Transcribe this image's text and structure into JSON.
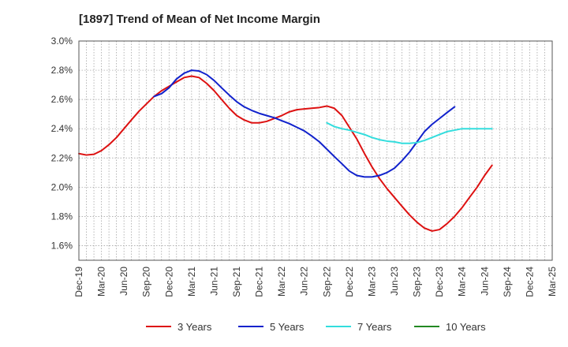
{
  "chart_data": {
    "type": "line",
    "title": "[1897]  Trend of Mean of Net Income Margin",
    "xlabel": "",
    "ylabel": "",
    "ylim": [
      1.5,
      3.0
    ],
    "yticks": [
      1.6,
      1.8,
      2.0,
      2.2,
      2.4,
      2.6,
      2.8,
      3.0
    ],
    "ytick_labels": [
      "1.6%",
      "1.8%",
      "2.0%",
      "2.2%",
      "2.4%",
      "2.6%",
      "2.8%",
      "3.0%"
    ],
    "x_labels": [
      "Dec-19",
      "Mar-20",
      "Jun-20",
      "Sep-20",
      "Dec-20",
      "Mar-21",
      "Jun-21",
      "Sep-21",
      "Dec-21",
      "Mar-22",
      "Jun-22",
      "Sep-22",
      "Dec-22",
      "Mar-23",
      "Jun-23",
      "Sep-23",
      "Dec-23",
      "Mar-24",
      "Jun-24",
      "Sep-24",
      "Dec-24",
      "Mar-25"
    ],
    "grid": true,
    "legend_position": "bottom",
    "series": [
      {
        "name": "3 Years",
        "color": "#dd1111",
        "points": [
          [
            0,
            2.23
          ],
          [
            0.33,
            2.22
          ],
          [
            0.67,
            2.225
          ],
          [
            1,
            2.25
          ],
          [
            1.33,
            2.29
          ],
          [
            1.67,
            2.34
          ],
          [
            2,
            2.4
          ],
          [
            2.33,
            2.46
          ],
          [
            2.67,
            2.52
          ],
          [
            3,
            2.57
          ],
          [
            3.33,
            2.62
          ],
          [
            3.67,
            2.66
          ],
          [
            4,
            2.69
          ],
          [
            4.33,
            2.72
          ],
          [
            4.67,
            2.75
          ],
          [
            5,
            2.76
          ],
          [
            5.33,
            2.75
          ],
          [
            5.67,
            2.71
          ],
          [
            6,
            2.66
          ],
          [
            6.33,
            2.6
          ],
          [
            6.67,
            2.54
          ],
          [
            7,
            2.49
          ],
          [
            7.33,
            2.46
          ],
          [
            7.67,
            2.44
          ],
          [
            8,
            2.44
          ],
          [
            8.33,
            2.45
          ],
          [
            8.67,
            2.47
          ],
          [
            9,
            2.49
          ],
          [
            9.33,
            2.515
          ],
          [
            9.67,
            2.53
          ],
          [
            10,
            2.535
          ],
          [
            10.33,
            2.54
          ],
          [
            10.67,
            2.545
          ],
          [
            11,
            2.555
          ],
          [
            11.33,
            2.54
          ],
          [
            11.67,
            2.49
          ],
          [
            12,
            2.41
          ],
          [
            12.33,
            2.33
          ],
          [
            12.67,
            2.23
          ],
          [
            13,
            2.14
          ],
          [
            13.33,
            2.06
          ],
          [
            13.67,
            1.99
          ],
          [
            14,
            1.93
          ],
          [
            14.33,
            1.87
          ],
          [
            14.67,
            1.81
          ],
          [
            15,
            1.76
          ],
          [
            15.33,
            1.72
          ],
          [
            15.67,
            1.7
          ],
          [
            16,
            1.71
          ],
          [
            16.33,
            1.75
          ],
          [
            16.67,
            1.8
          ],
          [
            17,
            1.86
          ],
          [
            17.33,
            1.93
          ],
          [
            17.67,
            2.0
          ],
          [
            18,
            2.08
          ],
          [
            18.33,
            2.15
          ]
        ]
      },
      {
        "name": "5 Years",
        "color": "#1122cc",
        "points": [
          [
            3.33,
            2.62
          ],
          [
            3.67,
            2.64
          ],
          [
            4,
            2.68
          ],
          [
            4.33,
            2.74
          ],
          [
            4.67,
            2.78
          ],
          [
            5,
            2.8
          ],
          [
            5.33,
            2.795
          ],
          [
            5.67,
            2.77
          ],
          [
            6,
            2.73
          ],
          [
            6.33,
            2.68
          ],
          [
            6.67,
            2.63
          ],
          [
            7,
            2.585
          ],
          [
            7.33,
            2.55
          ],
          [
            7.67,
            2.525
          ],
          [
            8,
            2.505
          ],
          [
            8.33,
            2.49
          ],
          [
            8.67,
            2.475
          ],
          [
            9,
            2.455
          ],
          [
            9.33,
            2.435
          ],
          [
            9.67,
            2.41
          ],
          [
            10,
            2.385
          ],
          [
            10.33,
            2.35
          ],
          [
            10.67,
            2.31
          ],
          [
            11,
            2.26
          ],
          [
            11.33,
            2.21
          ],
          [
            11.67,
            2.16
          ],
          [
            12,
            2.11
          ],
          [
            12.33,
            2.08
          ],
          [
            12.67,
            2.07
          ],
          [
            13,
            2.07
          ],
          [
            13.33,
            2.08
          ],
          [
            13.67,
            2.1
          ],
          [
            14,
            2.13
          ],
          [
            14.33,
            2.18
          ],
          [
            14.67,
            2.24
          ],
          [
            15,
            2.31
          ],
          [
            15.33,
            2.38
          ],
          [
            15.67,
            2.43
          ],
          [
            16,
            2.47
          ],
          [
            16.33,
            2.51
          ],
          [
            16.67,
            2.55
          ]
        ]
      },
      {
        "name": "7 Years",
        "color": "#33dddd",
        "points": [
          [
            11,
            2.44
          ],
          [
            11.33,
            2.415
          ],
          [
            11.67,
            2.4
          ],
          [
            12,
            2.39
          ],
          [
            12.33,
            2.375
          ],
          [
            12.67,
            2.36
          ],
          [
            13,
            2.34
          ],
          [
            13.33,
            2.325
          ],
          [
            13.67,
            2.315
          ],
          [
            14,
            2.31
          ],
          [
            14.33,
            2.3
          ],
          [
            14.67,
            2.3
          ],
          [
            15,
            2.305
          ],
          [
            15.33,
            2.32
          ],
          [
            15.67,
            2.34
          ],
          [
            16,
            2.36
          ],
          [
            16.33,
            2.38
          ],
          [
            16.67,
            2.39
          ],
          [
            17,
            2.4
          ],
          [
            17.33,
            2.4
          ],
          [
            17.67,
            2.4
          ],
          [
            18,
            2.4
          ],
          [
            18.33,
            2.4
          ]
        ]
      },
      {
        "name": "10 Years",
        "color": "#228822",
        "points": []
      }
    ]
  }
}
